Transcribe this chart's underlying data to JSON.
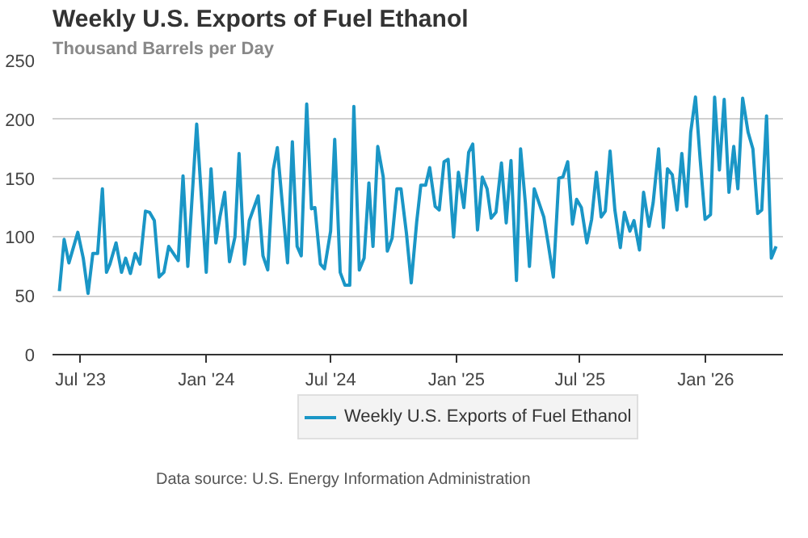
{
  "chart_data": {
    "type": "line",
    "title": "Weekly U.S. Exports of Fuel Ethanol",
    "subtitle": "Thousand Barrels per Day",
    "annotations": [
      "Data source: U.S. Energy Information Administration"
    ],
    "x": [
      "2023-05-31",
      "2023-06-07",
      "2023-06-14",
      "2023-06-27",
      "2023-07-05",
      "2023-07-12",
      "2023-07-19",
      "2023-07-26",
      "2023-08-02",
      "2023-08-08",
      "2023-08-13",
      "2023-08-22",
      "2023-08-30",
      "2023-09-05",
      "2023-09-12",
      "2023-09-19",
      "2023-09-26",
      "2023-10-04",
      "2023-10-10",
      "2023-10-17",
      "2023-10-24",
      "2023-10-31",
      "2023-11-07",
      "2023-11-14",
      "2023-11-21",
      "2023-11-28",
      "2023-12-05",
      "2023-12-18",
      "2024-01-01",
      "2024-01-08",
      "2024-01-15",
      "2024-01-21",
      "2024-01-28",
      "2024-02-04",
      "2024-02-12",
      "2024-02-18",
      "2024-02-26",
      "2024-03-04",
      "2024-03-17",
      "2024-03-24",
      "2024-03-31",
      "2024-04-08",
      "2024-04-14",
      "2024-04-29",
      "2024-05-06",
      "2024-05-13",
      "2024-05-19",
      "2024-05-27",
      "2024-06-03",
      "2024-06-08",
      "2024-06-16",
      "2024-06-22",
      "2024-07-01",
      "2024-07-07",
      "2024-07-15",
      "2024-07-22",
      "2024-07-29",
      "2024-08-04",
      "2024-08-12",
      "2024-08-19",
      "2024-08-26",
      "2024-09-01",
      "2024-09-08",
      "2024-09-16",
      "2024-09-22",
      "2024-09-29",
      "2024-10-06",
      "2024-10-12",
      "2024-10-20",
      "2024-10-27",
      "2024-11-04",
      "2024-11-10",
      "2024-11-17",
      "2024-11-23",
      "2024-12-01",
      "2024-12-07",
      "2024-12-14",
      "2024-12-20",
      "2024-12-28",
      "2025-01-04",
      "2025-01-12",
      "2025-01-19",
      "2025-01-25",
      "2025-02-01",
      "2025-02-08",
      "2025-02-15",
      "2025-02-21",
      "2025-02-28",
      "2025-03-08",
      "2025-03-15",
      "2025-03-22",
      "2025-03-30",
      "2025-04-05",
      "2025-04-12",
      "2025-04-18",
      "2025-04-25",
      "2025-05-09",
      "2025-05-15",
      "2025-05-23",
      "2025-05-31",
      "2025-06-06",
      "2025-06-13",
      "2025-06-20",
      "2025-06-26",
      "2025-07-03",
      "2025-07-11",
      "2025-07-18",
      "2025-07-25",
      "2025-08-01",
      "2025-08-07",
      "2025-08-14",
      "2025-08-21",
      "2025-08-29",
      "2025-09-04",
      "2025-09-12",
      "2025-09-18",
      "2025-09-26",
      "2025-10-02",
      "2025-10-10",
      "2025-10-16",
      "2025-10-24",
      "2025-10-31",
      "2025-11-06",
      "2025-11-13",
      "2025-11-20",
      "2025-11-27",
      "2025-12-04",
      "2025-12-10",
      "2025-12-17",
      "2025-12-24",
      "2025-12-31",
      "2026-01-08",
      "2026-01-14",
      "2026-01-21",
      "2026-01-28",
      "2026-02-04",
      "2026-02-11",
      "2026-02-17",
      "2026-02-24",
      "2026-03-04",
      "2026-03-11",
      "2026-03-18",
      "2026-03-24",
      "2026-03-31",
      "2026-04-07",
      "2026-04-14"
    ],
    "series": [
      {
        "name": "Weekly U.S. Exports of Fuel Ethanol",
        "color": "#1a96c6",
        "values": [
          54,
          98,
          78,
          104,
          82,
          52,
          86,
          86,
          141,
          70,
          77,
          95,
          70,
          82,
          69,
          86,
          77,
          122,
          121,
          114,
          66,
          70,
          92,
          86,
          80,
          152,
          75,
          196,
          70,
          158,
          95,
          117,
          138,
          79,
          100,
          171,
          77,
          114,
          135,
          84,
          72,
          157,
          176,
          78,
          181,
          92,
          84,
          213,
          124,
          125,
          77,
          73,
          105,
          183,
          70,
          59,
          59,
          211,
          72,
          82,
          146,
          92,
          177,
          151,
          88,
          99,
          141,
          141,
          103,
          61,
          113,
          144,
          144,
          159,
          126,
          123,
          164,
          166,
          100,
          155,
          125,
          172,
          179,
          106,
          151,
          141,
          116,
          121,
          163,
          112,
          165,
          63,
          175,
          129,
          75,
          141,
          117,
          96,
          66,
          150,
          151,
          164,
          111,
          132,
          125,
          95,
          115,
          155,
          117,
          122,
          173,
          123,
          91,
          121,
          105,
          114,
          89,
          138,
          109,
          129,
          175,
          108,
          158,
          153,
          123,
          171,
          126,
          189,
          219,
          165,
          115,
          119,
          219,
          157,
          217,
          138,
          177,
          141,
          218,
          189,
          175,
          120,
          123,
          203,
          82,
          92
        ]
      }
    ],
    "xlim": [
      "2023-05-21",
      "2026-04-24"
    ],
    "xticks": [
      {
        "value": "2023-07-01",
        "label": "Jul '23"
      },
      {
        "value": "2024-01-01",
        "label": "Jan '24"
      },
      {
        "value": "2024-07-01",
        "label": "Jul '24"
      },
      {
        "value": "2025-01-01",
        "label": "Jan '25"
      },
      {
        "value": "2025-07-01",
        "label": "Jul '25"
      },
      {
        "value": "2026-01-01",
        "label": "Jan '26"
      }
    ],
    "ylim": [
      0,
      250
    ],
    "yticks": [
      0,
      50,
      100,
      150,
      200,
      250
    ],
    "grid": "y",
    "legend": "bottom",
    "marker": "none",
    "line_style": "solid"
  }
}
